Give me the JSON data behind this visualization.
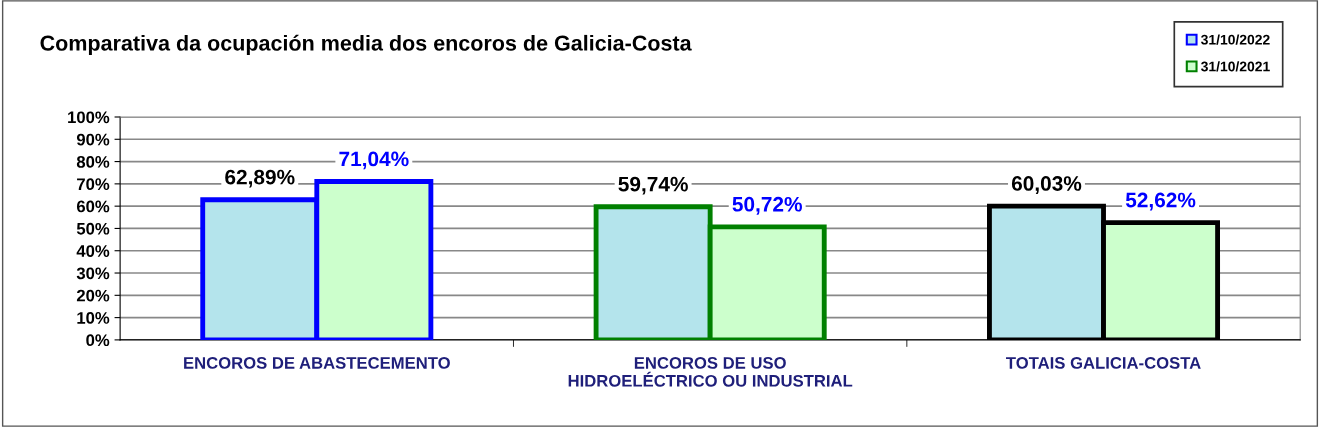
{
  "chart_data": {
    "type": "bar",
    "title": "Comparativa da ocupación media dos encoros de Galicia-Costa",
    "categories": [
      "ENCOROS DE ABASTECEMENTO",
      "ENCOROS DE USO\nHIDROELÉCTRICO OU INDUSTRIAL",
      "TOTAIS GALICIA-COSTA"
    ],
    "series": [
      {
        "name": "31/10/2022",
        "color": "#b4e4ec",
        "values": [
          62.89,
          59.74,
          60.03
        ],
        "value_labels": [
          "62,89%",
          "59,74%",
          "60,03%"
        ]
      },
      {
        "name": "31/10/2021",
        "color": "#ccffcc",
        "values": [
          71.04,
          50.72,
          52.62
        ],
        "value_labels": [
          "71,04%",
          "50,72%",
          "52,62%"
        ]
      }
    ],
    "ylim": [
      0,
      100
    ],
    "yticks": [
      {
        "value": 0,
        "label": "0%"
      },
      {
        "value": 10,
        "label": "10%"
      },
      {
        "value": 20,
        "label": "20%"
      },
      {
        "value": 30,
        "label": "30%"
      },
      {
        "value": 40,
        "label": "40%"
      },
      {
        "value": 50,
        "label": "50%"
      },
      {
        "value": 60,
        "label": "60%"
      },
      {
        "value": 70,
        "label": "70%"
      },
      {
        "value": 80,
        "label": "80%"
      },
      {
        "value": 90,
        "label": "90%"
      },
      {
        "value": 100,
        "label": "100%"
      }
    ],
    "grid": "y",
    "legend": "top right"
  }
}
